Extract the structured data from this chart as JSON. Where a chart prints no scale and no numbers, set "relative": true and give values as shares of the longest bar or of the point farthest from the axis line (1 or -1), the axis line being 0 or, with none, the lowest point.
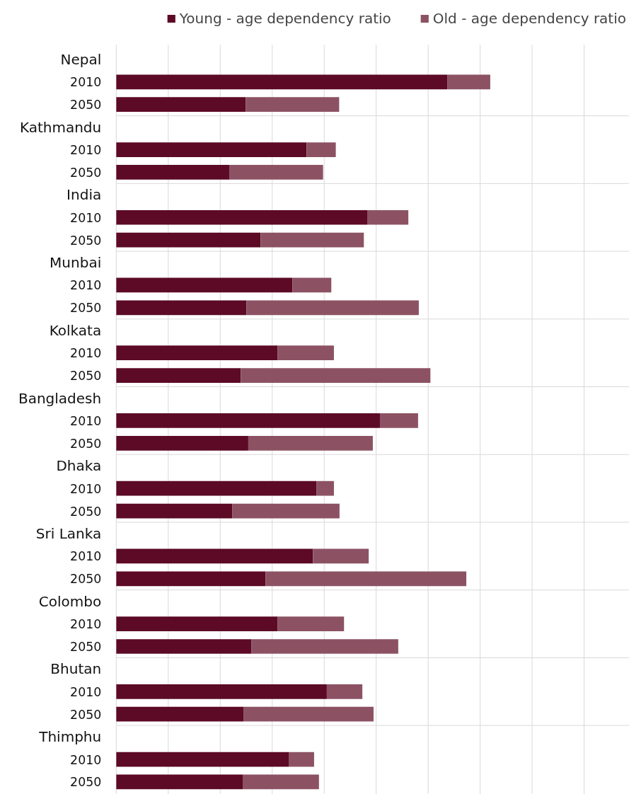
{
  "chart_data": {
    "type": "bar",
    "orientation": "horizontal",
    "stacked": true,
    "relative": true,
    "legend": "top",
    "grid": "x",
    "categories": [
      "Nepal",
      "2010",
      "2050",
      "Kathmandu",
      "2010",
      "2050",
      "India",
      "2010",
      "2050",
      "Munbai",
      "2010",
      "2050",
      "Kolkata",
      "2010",
      "2050",
      "Bangladesh",
      "2010",
      "2050",
      "Dhaka",
      "2010",
      "2050",
      "Sri Lanka",
      "2010",
      "2050",
      "Colombo",
      "2010",
      "2050",
      "Bhutan",
      "2010",
      "2050",
      "Thimphu",
      "2010",
      "2050"
    ],
    "series": [
      {
        "name": "Young - age dependency ratio",
        "color": "#5c0a26",
        "values": [
          null,
          0.885,
          0.346,
          null,
          0.509,
          0.302,
          null,
          0.671,
          0.386,
          null,
          0.471,
          0.348,
          null,
          0.431,
          0.333,
          null,
          0.705,
          0.353,
          null,
          0.535,
          0.31,
          null,
          0.526,
          0.399,
          null,
          0.431,
          0.361,
          null,
          0.563,
          0.34,
          null,
          0.461,
          0.338
        ]
      },
      {
        "name": "Old - age dependency ratio",
        "color": "#8c5264",
        "values": [
          null,
          0.115,
          0.25,
          null,
          0.078,
          0.251,
          null,
          0.11,
          0.276,
          null,
          0.104,
          0.461,
          null,
          0.151,
          0.507,
          null,
          0.102,
          0.333,
          null,
          0.047,
          0.287,
          null,
          0.149,
          0.537,
          null,
          0.178,
          0.393,
          null,
          0.095,
          0.348,
          null,
          0.068,
          0.204
        ]
      }
    ]
  }
}
